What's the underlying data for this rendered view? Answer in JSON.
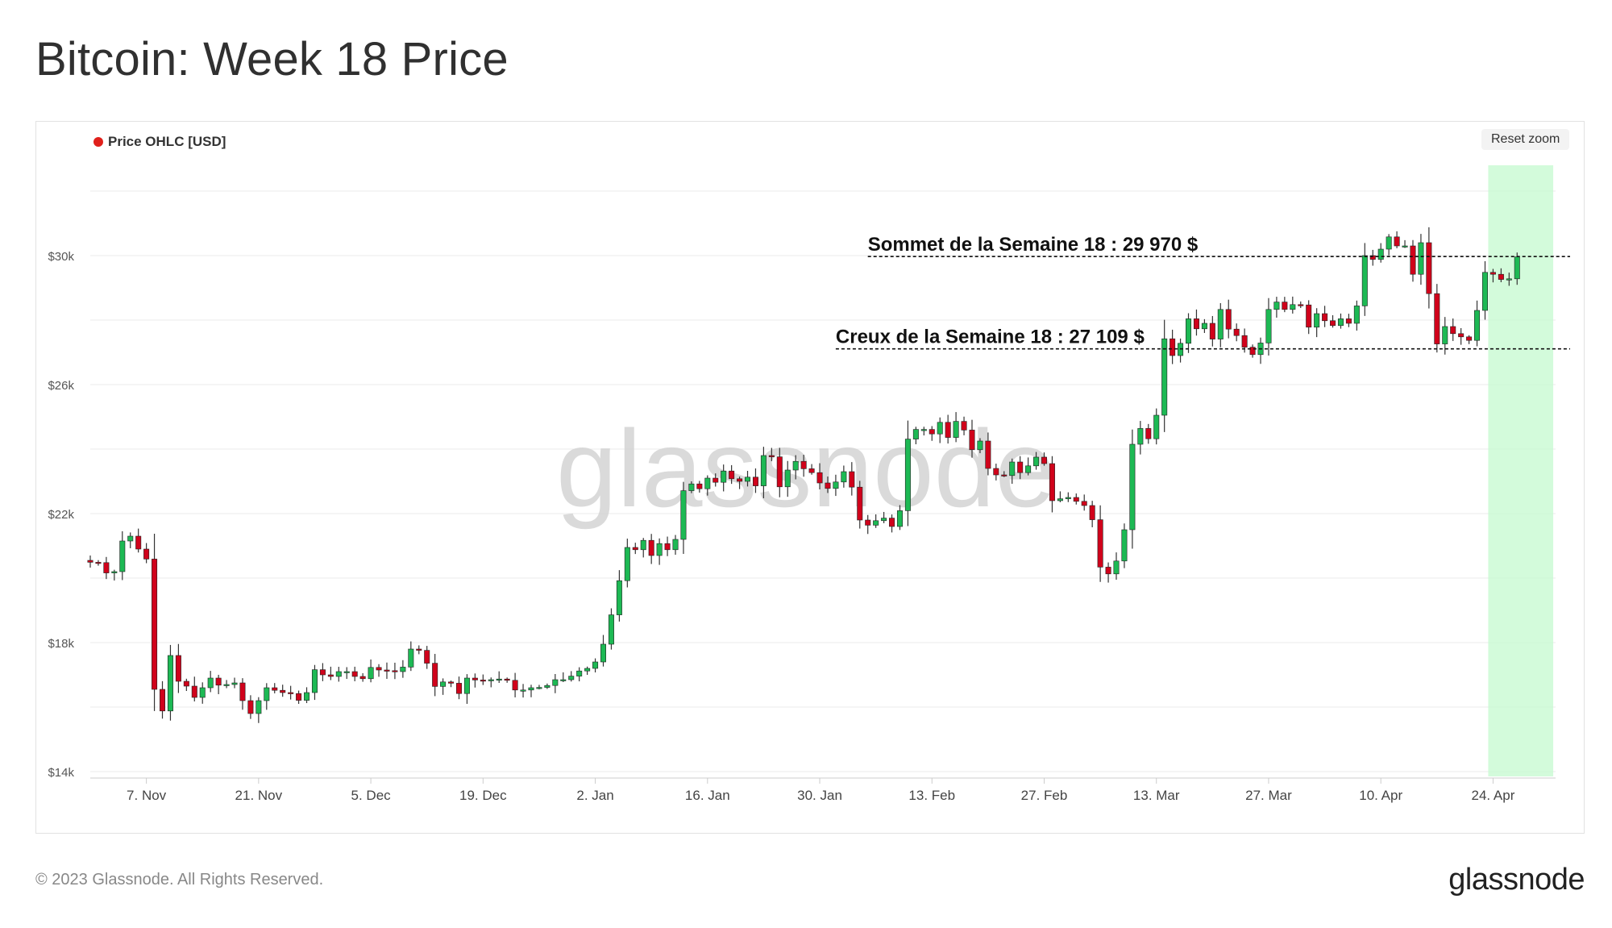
{
  "page": {
    "title": "Bitcoin: Week 18 Price",
    "footer": "© 2023 Glassnode. All Rights Reserved.",
    "brand": "glassnode",
    "watermark": "glassnode",
    "reset_zoom_label": "Reset zoom"
  },
  "colors": {
    "up": "#1db954",
    "down": "#d0021b",
    "wick": "#333333",
    "highlight": "#c8fad2",
    "legend_dot": "#e0201b",
    "grid": "#ebebeb"
  },
  "chart_data": {
    "type": "candlestick",
    "series_name": "Price OHLC [USD]",
    "legend_position": "top-left",
    "grid": true,
    "xlim": [
      "2022-10-31",
      "2023-05-02"
    ],
    "ylim": [
      13800,
      32800
    ],
    "yticks": [
      {
        "value": 14000,
        "label": "$14k"
      },
      {
        "value": 18000,
        "label": "$18k"
      },
      {
        "value": 22000,
        "label": "$22k"
      },
      {
        "value": 26000,
        "label": "$26k"
      },
      {
        "value": 30000,
        "label": "$30k"
      }
    ],
    "xticks": [
      {
        "date": "2022-11-07",
        "label": "7. Nov"
      },
      {
        "date": "2022-11-21",
        "label": "21. Nov"
      },
      {
        "date": "2022-12-05",
        "label": "5. Dec"
      },
      {
        "date": "2022-12-19",
        "label": "19. Dec"
      },
      {
        "date": "2023-01-02",
        "label": "2. Jan"
      },
      {
        "date": "2023-01-16",
        "label": "16. Jan"
      },
      {
        "date": "2023-01-30",
        "label": "30. Jan"
      },
      {
        "date": "2023-02-13",
        "label": "13. Feb"
      },
      {
        "date": "2023-02-27",
        "label": "27. Feb"
      },
      {
        "date": "2023-03-13",
        "label": "13. Mar"
      },
      {
        "date": "2023-03-27",
        "label": "27. Mar"
      },
      {
        "date": "2023-04-10",
        "label": "10. Apr"
      },
      {
        "date": "2023-04-24",
        "label": "24. Apr"
      }
    ],
    "highlight_range": [
      "2023-04-24",
      "2023-05-01"
    ],
    "annotations": [
      {
        "text": "Sommet de la Semaine 18 : 29 970 $",
        "value": 29970,
        "start": "2023-02-05"
      },
      {
        "text": "Creux de la Semaine 18 : 27 109 $",
        "value": 27109,
        "start": "2023-02-01"
      }
    ],
    "start_date": "2022-10-31",
    "closes": [
      20490,
      20480,
      20160,
      20200,
      21150,
      21300,
      20900,
      20590,
      16550,
      15880,
      17600,
      16800,
      16650,
      16300,
      16600,
      16900,
      16680,
      16700,
      16750,
      16200,
      15800,
      16200,
      16600,
      16520,
      16450,
      16420,
      16210,
      16450,
      17160,
      17000,
      16950,
      17100,
      17100,
      16950,
      16880,
      17230,
      17150,
      17130,
      17100,
      17240,
      17800,
      17760,
      17360,
      16640,
      16780,
      16740,
      16420,
      16900,
      16840,
      16830,
      16850,
      16870,
      16830,
      16530,
      16530,
      16600,
      16610,
      16670,
      16850,
      16850,
      16960,
      17120,
      17200,
      17400,
      17950,
      18860,
      19920,
      20950,
      20880,
      21170,
      20700,
      21070,
      20880,
      21200,
      22710,
      22920,
      22770,
      23100,
      22970,
      23320,
      23080,
      23000,
      23130,
      22860,
      23800,
      23760,
      22830,
      23350,
      23620,
      23390,
      23270,
      22950,
      22780,
      22980,
      23300,
      22820,
      21800,
      21640,
      21780,
      21860,
      21600,
      22090,
      24310,
      24610,
      24610,
      24470,
      24830,
      24360,
      24860,
      24590,
      23980,
      24250,
      23400,
      23200,
      23180,
      23600,
      23270,
      23480,
      23750,
      23550,
      22400,
      22460,
      22500,
      22380,
      22250,
      21810,
      20340,
      20130,
      20530,
      21500,
      24150,
      24640,
      24320,
      25050,
      27420,
      26900,
      27280,
      28040,
      27730,
      27900,
      27410,
      28330,
      27720,
      27520,
      27160,
      26930,
      27290,
      28330,
      28560,
      28330,
      28480,
      28470,
      27780,
      28200,
      27980,
      27830,
      28040,
      27900,
      28440,
      30000,
      29880,
      30200,
      30580,
      30300,
      30300,
      29420,
      30400,
      28820,
      27260,
      27800,
      27580,
      27480,
      27370,
      28300,
      29480,
      29420,
      29260,
      29280,
      29960
    ]
  }
}
